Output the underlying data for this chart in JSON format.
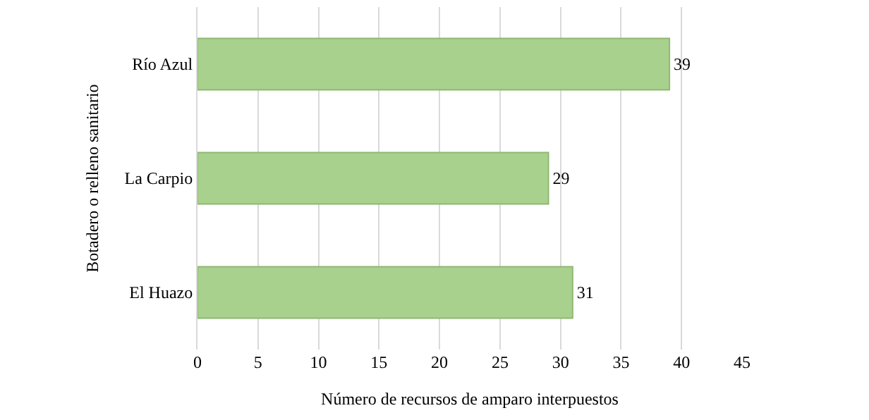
{
  "chart_data": {
    "type": "bar",
    "orientation": "horizontal",
    "xlabel": "Número de recursos de amparo interpuestos",
    "ylabel": "Botadero o relleno sanitario",
    "categories": [
      "Río Azul",
      "La Carpio",
      "El Huazo"
    ],
    "values": [
      39,
      29,
      31
    ],
    "color": "#a9d18e",
    "xlim": [
      0,
      45
    ],
    "xticks": [
      0,
      5,
      10,
      15,
      20,
      25,
      30,
      35,
      40,
      45
    ],
    "grid": "x",
    "data_labels": true
  }
}
